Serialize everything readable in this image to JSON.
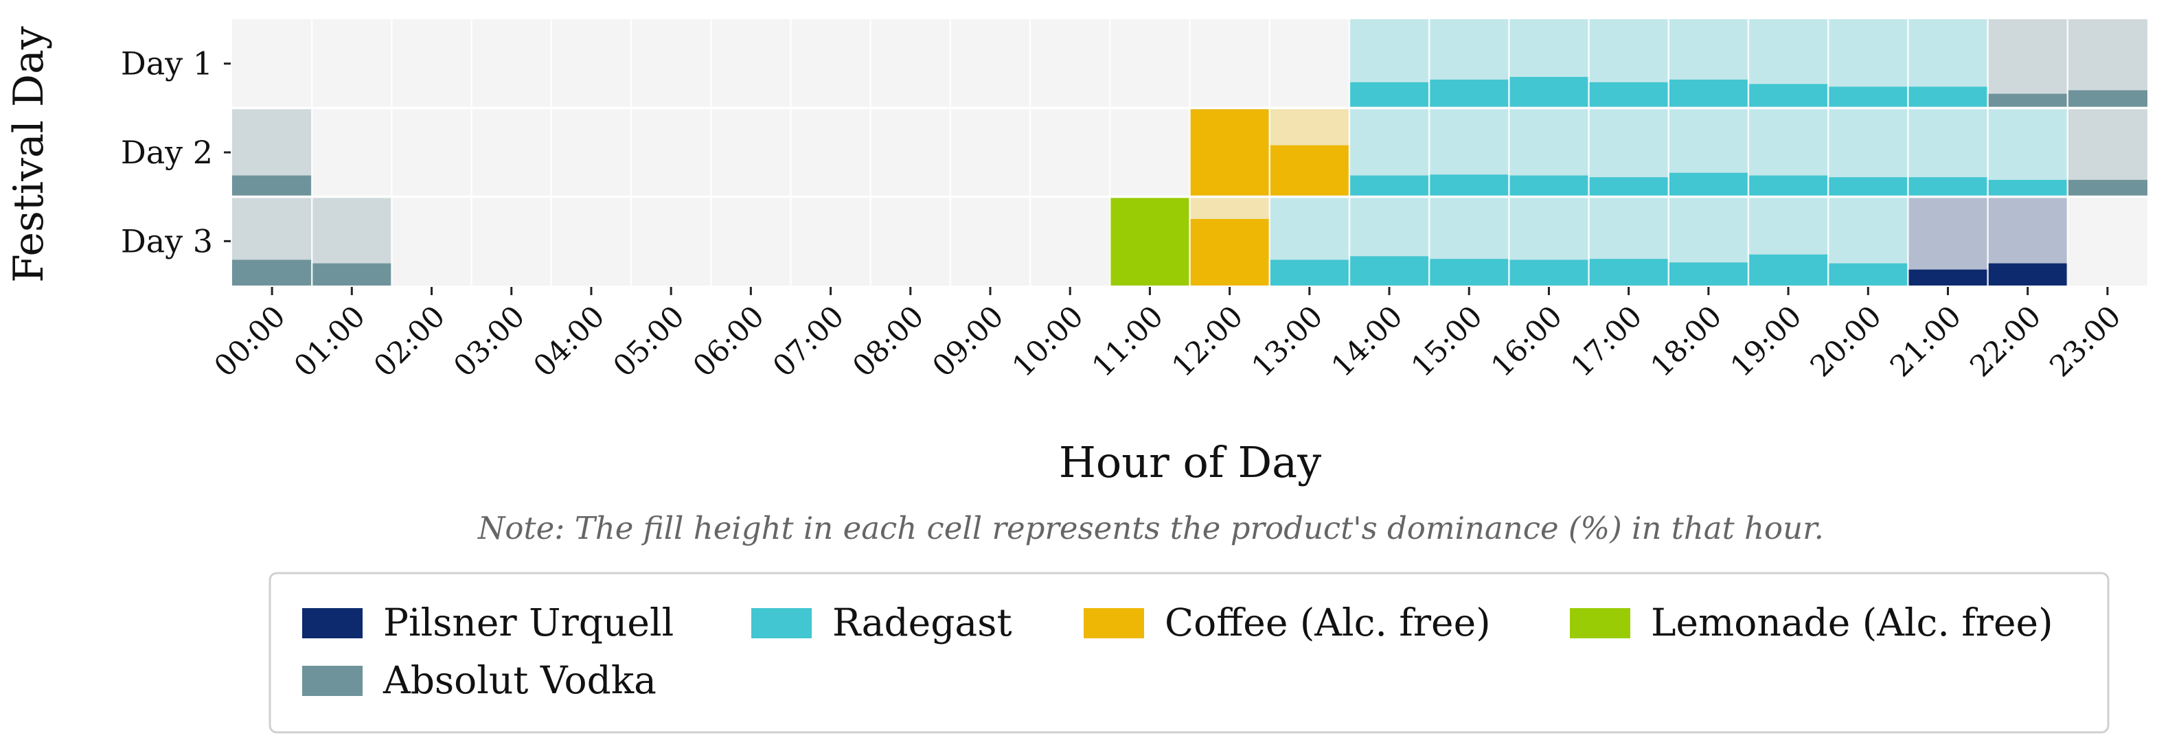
{
  "chart_data": {
    "type": "heatmap",
    "title": "",
    "xlabel": "Hour of Day",
    "ylabel": "Festival Day",
    "note": "Note: The fill height in each cell represents the product's dominance (%) in that hour.",
    "x_ticks": [
      "00:00",
      "01:00",
      "02:00",
      "03:00",
      "04:00",
      "05:00",
      "06:00",
      "07:00",
      "08:00",
      "09:00",
      "10:00",
      "11:00",
      "12:00",
      "13:00",
      "14:00",
      "15:00",
      "16:00",
      "17:00",
      "18:00",
      "19:00",
      "20:00",
      "21:00",
      "22:00",
      "23:00"
    ],
    "y_ticks": [
      "Day 1",
      "Day 2",
      "Day 3"
    ],
    "value_range": [
      0,
      100
    ],
    "legend": {
      "placement": "bottom",
      "items": [
        {
          "name": "Pilsner Urquell",
          "color": "#0d2a6e"
        },
        {
          "name": "Radegast",
          "color": "#42c6d1"
        },
        {
          "name": "Coffee (Alc. free)",
          "color": "#eeb705"
        },
        {
          "name": "Lemonade (Alc. free)",
          "color": "#99cc05"
        },
        {
          "name": "Absolut Vodka",
          "color": "#6e939b"
        }
      ]
    },
    "cells": [
      {
        "day": "Day 1",
        "hour": "14:00",
        "product": "Radegast",
        "dominance": 29
      },
      {
        "day": "Day 1",
        "hour": "15:00",
        "product": "Radegast",
        "dominance": 32
      },
      {
        "day": "Day 1",
        "hour": "16:00",
        "product": "Radegast",
        "dominance": 35
      },
      {
        "day": "Day 1",
        "hour": "17:00",
        "product": "Radegast",
        "dominance": 29
      },
      {
        "day": "Day 1",
        "hour": "18:00",
        "product": "Radegast",
        "dominance": 32
      },
      {
        "day": "Day 1",
        "hour": "19:00",
        "product": "Radegast",
        "dominance": 27
      },
      {
        "day": "Day 1",
        "hour": "20:00",
        "product": "Radegast",
        "dominance": 24
      },
      {
        "day": "Day 1",
        "hour": "21:00",
        "product": "Radegast",
        "dominance": 24
      },
      {
        "day": "Day 1",
        "hour": "22:00",
        "product": "Absolut Vodka",
        "dominance": 16
      },
      {
        "day": "Day 1",
        "hour": "23:00",
        "product": "Absolut Vodka",
        "dominance": 20
      },
      {
        "day": "Day 2",
        "hour": "00:00",
        "product": "Absolut Vodka",
        "dominance": 24
      },
      {
        "day": "Day 2",
        "hour": "12:00",
        "product": "Coffee (Alc. free)",
        "dominance": 100
      },
      {
        "day": "Day 2",
        "hour": "13:00",
        "product": "Coffee (Alc. free)",
        "dominance": 58
      },
      {
        "day": "Day 2",
        "hour": "14:00",
        "product": "Radegast",
        "dominance": 24
      },
      {
        "day": "Day 2",
        "hour": "15:00",
        "product": "Radegast",
        "dominance": 25
      },
      {
        "day": "Day 2",
        "hour": "16:00",
        "product": "Radegast",
        "dominance": 24
      },
      {
        "day": "Day 2",
        "hour": "17:00",
        "product": "Radegast",
        "dominance": 22
      },
      {
        "day": "Day 2",
        "hour": "18:00",
        "product": "Radegast",
        "dominance": 27
      },
      {
        "day": "Day 2",
        "hour": "19:00",
        "product": "Radegast",
        "dominance": 24
      },
      {
        "day": "Day 2",
        "hour": "20:00",
        "product": "Radegast",
        "dominance": 22
      },
      {
        "day": "Day 2",
        "hour": "21:00",
        "product": "Radegast",
        "dominance": 22
      },
      {
        "day": "Day 2",
        "hour": "22:00",
        "product": "Radegast",
        "dominance": 19
      },
      {
        "day": "Day 2",
        "hour": "23:00",
        "product": "Absolut Vodka",
        "dominance": 19
      },
      {
        "day": "Day 3",
        "hour": "00:00",
        "product": "Absolut Vodka",
        "dominance": 29
      },
      {
        "day": "Day 3",
        "hour": "01:00",
        "product": "Absolut Vodka",
        "dominance": 25
      },
      {
        "day": "Day 3",
        "hour": "11:00",
        "product": "Lemonade (Alc. free)",
        "dominance": 100
      },
      {
        "day": "Day 3",
        "hour": "12:00",
        "product": "Coffee (Alc. free)",
        "dominance": 75
      },
      {
        "day": "Day 3",
        "hour": "13:00",
        "product": "Radegast",
        "dominance": 29
      },
      {
        "day": "Day 3",
        "hour": "14:00",
        "product": "Radegast",
        "dominance": 33
      },
      {
        "day": "Day 3",
        "hour": "15:00",
        "product": "Radegast",
        "dominance": 30
      },
      {
        "day": "Day 3",
        "hour": "16:00",
        "product": "Radegast",
        "dominance": 29
      },
      {
        "day": "Day 3",
        "hour": "17:00",
        "product": "Radegast",
        "dominance": 30
      },
      {
        "day": "Day 3",
        "hour": "18:00",
        "product": "Radegast",
        "dominance": 26
      },
      {
        "day": "Day 3",
        "hour": "19:00",
        "product": "Radegast",
        "dominance": 35
      },
      {
        "day": "Day 3",
        "hour": "20:00",
        "product": "Radegast",
        "dominance": 25
      },
      {
        "day": "Day 3",
        "hour": "21:00",
        "product": "Pilsner Urquell",
        "dominance": 18
      },
      {
        "day": "Day 3",
        "hour": "22:00",
        "product": "Pilsner Urquell",
        "dominance": 25
      }
    ]
  }
}
